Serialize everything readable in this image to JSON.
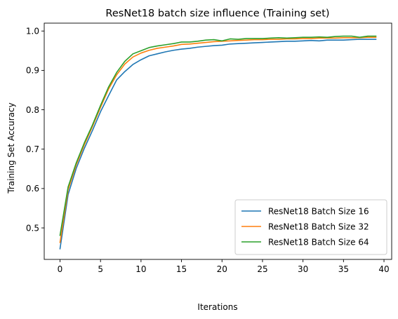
{
  "chart_data": {
    "type": "line",
    "title": "ResNet18 batch size influence (Training set)",
    "xlabel": "Iterations",
    "ylabel": "Training Set Accuracy",
    "xlim": [
      -1.95,
      40.95
    ],
    "ylim": [
      0.42,
      1.02
    ],
    "xticks": [
      0,
      5,
      10,
      15,
      20,
      25,
      30,
      35,
      40
    ],
    "yticks": [
      0.5,
      0.6,
      0.7,
      0.8,
      0.9,
      1.0
    ],
    "xtick_labels": [
      "0",
      "5",
      "10",
      "15",
      "20",
      "25",
      "30",
      "35",
      "40"
    ],
    "ytick_labels": [
      "0.5",
      "0.6",
      "0.7",
      "0.8",
      "0.9",
      "1.0"
    ],
    "grid": false,
    "legend_position": "lower-right",
    "x": [
      0,
      1,
      2,
      3,
      4,
      5,
      6,
      7,
      8,
      9,
      10,
      11,
      12,
      13,
      14,
      15,
      16,
      17,
      18,
      19,
      20,
      21,
      22,
      23,
      24,
      25,
      26,
      27,
      28,
      29,
      30,
      31,
      32,
      33,
      34,
      35,
      36,
      37,
      38,
      39
    ],
    "series": [
      {
        "name": "ResNet18 Batch Size 16",
        "color": "#1f77b4",
        "values": [
          0.447,
          0.585,
          0.651,
          0.702,
          0.747,
          0.795,
          0.836,
          0.876,
          0.897,
          0.915,
          0.927,
          0.937,
          0.942,
          0.947,
          0.951,
          0.954,
          0.956,
          0.959,
          0.961,
          0.963,
          0.964,
          0.967,
          0.968,
          0.969,
          0.97,
          0.971,
          0.972,
          0.973,
          0.974,
          0.974,
          0.975,
          0.976,
          0.975,
          0.977,
          0.977,
          0.977,
          0.978,
          0.979,
          0.979,
          0.979
        ]
      },
      {
        "name": "ResNet18 Batch Size 32",
        "color": "#ff7f0e",
        "values": [
          0.463,
          0.597,
          0.66,
          0.711,
          0.757,
          0.806,
          0.853,
          0.889,
          0.916,
          0.934,
          0.944,
          0.951,
          0.956,
          0.959,
          0.962,
          0.966,
          0.967,
          0.969,
          0.971,
          0.973,
          0.974,
          0.975,
          0.976,
          0.977,
          0.978,
          0.978,
          0.979,
          0.979,
          0.98,
          0.98,
          0.981,
          0.981,
          0.982,
          0.982,
          0.982,
          0.983,
          0.983,
          0.983,
          0.984,
          0.984
        ]
      },
      {
        "name": "ResNet18 Batch Size 64",
        "color": "#2ca02c",
        "values": [
          0.481,
          0.604,
          0.665,
          0.716,
          0.761,
          0.811,
          0.858,
          0.895,
          0.923,
          0.942,
          0.95,
          0.958,
          0.962,
          0.965,
          0.968,
          0.972,
          0.972,
          0.974,
          0.977,
          0.978,
          0.975,
          0.98,
          0.979,
          0.981,
          0.981,
          0.981,
          0.982,
          0.983,
          0.982,
          0.983,
          0.984,
          0.984,
          0.985,
          0.984,
          0.986,
          0.987,
          0.987,
          0.984,
          0.987,
          0.987
        ]
      }
    ]
  }
}
